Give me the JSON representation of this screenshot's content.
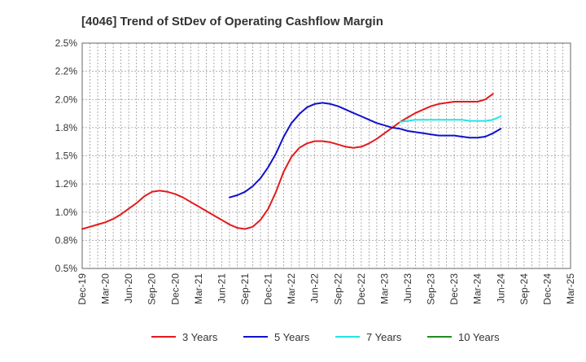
{
  "chart_data": {
    "type": "line",
    "title": "[4046]  Trend of StDev of Operating Cashflow Margin",
    "xlabel": "",
    "ylabel": "",
    "grid": true,
    "legend_position": "bottom",
    "x_tick_labels": [
      "Dec-19",
      "Mar-20",
      "Jun-20",
      "Sep-20",
      "Dec-20",
      "Mar-21",
      "Jun-21",
      "Sep-21",
      "Dec-21",
      "Mar-22",
      "Jun-22",
      "Sep-22",
      "Dec-22",
      "Mar-23",
      "Jun-23",
      "Sep-23",
      "Dec-23",
      "Mar-24",
      "Jun-24",
      "Sep-24",
      "Dec-24",
      "Mar-25"
    ],
    "y_tick_labels": [
      "0.5%",
      "0.8%",
      "1.0%",
      "1.2%",
      "1.5%",
      "1.8%",
      "2.0%",
      "2.2%",
      "2.5%"
    ],
    "ylim": [
      0.5,
      2.5
    ],
    "y_unit": "%",
    "series": [
      {
        "name": "3 Years",
        "color": "#e41a1c",
        "start_index": 0,
        "values": [
          0.85,
          0.87,
          0.89,
          0.91,
          0.94,
          0.98,
          1.03,
          1.08,
          1.14,
          1.18,
          1.19,
          1.18,
          1.16,
          1.13,
          1.09,
          1.05,
          1.01,
          0.97,
          0.93,
          0.89,
          0.86,
          0.85,
          0.87,
          0.93,
          1.03,
          1.18,
          1.36,
          1.49,
          1.57,
          1.61,
          1.63,
          1.63,
          1.62,
          1.6,
          1.58,
          1.57,
          1.58,
          1.61,
          1.65,
          1.7,
          1.75,
          1.8,
          1.84,
          1.88,
          1.91,
          1.94,
          1.96,
          1.97,
          1.98,
          1.98,
          1.98,
          1.98,
          2.0,
          2.05
        ]
      },
      {
        "name": "5 Years",
        "color": "#1111cc",
        "start_index": 19,
        "values": [
          1.13,
          1.15,
          1.18,
          1.23,
          1.3,
          1.4,
          1.52,
          1.67,
          1.79,
          1.87,
          1.93,
          1.96,
          1.97,
          1.96,
          1.94,
          1.91,
          1.88,
          1.85,
          1.82,
          1.79,
          1.77,
          1.75,
          1.74,
          1.72,
          1.71,
          1.7,
          1.69,
          1.68,
          1.68,
          1.68,
          1.67,
          1.66,
          1.66,
          1.67,
          1.7,
          1.74
        ]
      },
      {
        "name": "7 Years",
        "color": "#22e5e5",
        "start_index": 41,
        "values": [
          1.8,
          1.81,
          1.82,
          1.82,
          1.82,
          1.82,
          1.82,
          1.82,
          1.82,
          1.81,
          1.81,
          1.81,
          1.82,
          1.85
        ]
      },
      {
        "name": "10 Years",
        "color": "#228b22",
        "start_index": 0,
        "values": []
      }
    ]
  }
}
